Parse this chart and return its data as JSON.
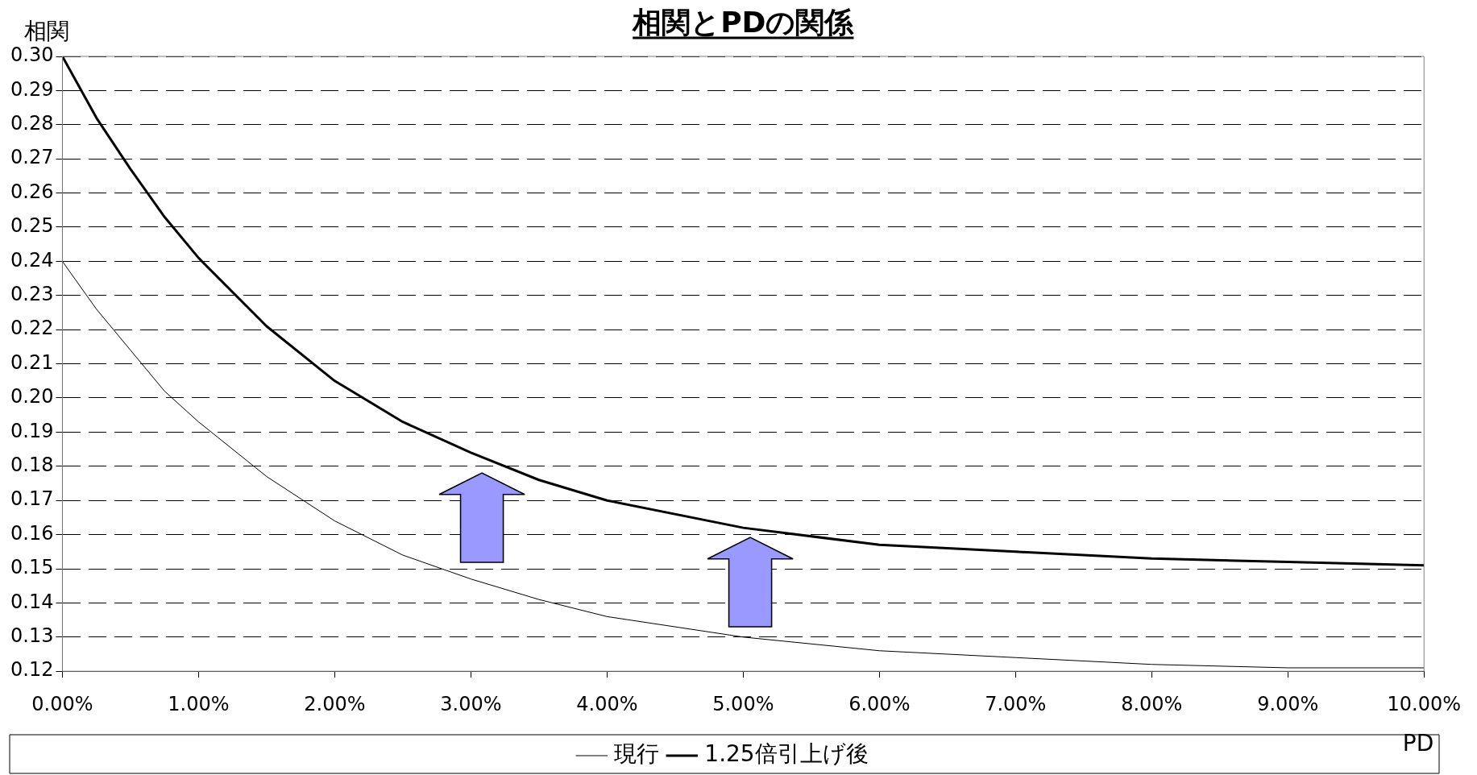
{
  "chart_data": {
    "type": "line",
    "title": "相関とPDの関係",
    "xlabel": "PD",
    "ylabel": "相関",
    "x": [
      0,
      0.25,
      0.5,
      0.75,
      1,
      1.5,
      2,
      2.5,
      3,
      3.5,
      4,
      5,
      6,
      7,
      8,
      9,
      10
    ],
    "series": [
      {
        "name": "現行",
        "color": "#000000",
        "values": [
          0.24,
          0.226,
          0.214,
          0.202,
          0.193,
          0.177,
          0.164,
          0.154,
          0.147,
          0.141,
          0.136,
          0.13,
          0.126,
          0.124,
          0.122,
          0.121,
          0.121
        ]
      },
      {
        "name": "1.25倍引上げ後",
        "color": "#000000",
        "values": [
          0.3,
          0.282,
          0.267,
          0.253,
          0.241,
          0.221,
          0.205,
          0.193,
          0.184,
          0.176,
          0.17,
          0.162,
          0.157,
          0.155,
          0.153,
          0.152,
          0.151
        ]
      }
    ],
    "xlim": [
      0,
      10
    ],
    "xticks": [
      {
        "value": 0,
        "label": "0.00%"
      },
      {
        "value": 1,
        "label": "1.00%"
      },
      {
        "value": 2,
        "label": "2.00%"
      },
      {
        "value": 3,
        "label": "3.00%"
      },
      {
        "value": 4,
        "label": "4.00%"
      },
      {
        "value": 5,
        "label": "5.00%"
      },
      {
        "value": 6,
        "label": "6.00%"
      },
      {
        "value": 7,
        "label": "7.00%"
      },
      {
        "value": 8,
        "label": "8.00%"
      },
      {
        "value": 9,
        "label": "9.00%"
      },
      {
        "value": 10,
        "label": "10.00%"
      }
    ],
    "ylim": [
      0.12,
      0.3
    ],
    "yticks": [
      {
        "value": 0.12,
        "label": "0.12"
      },
      {
        "value": 0.13,
        "label": "0.13"
      },
      {
        "value": 0.14,
        "label": "0.14"
      },
      {
        "value": 0.15,
        "label": "0.15"
      },
      {
        "value": 0.16,
        "label": "0.16"
      },
      {
        "value": 0.17,
        "label": "0.17"
      },
      {
        "value": 0.18,
        "label": "0.18"
      },
      {
        "value": 0.19,
        "label": "0.19"
      },
      {
        "value": 0.2,
        "label": "0.20"
      },
      {
        "value": 0.21,
        "label": "0.21"
      },
      {
        "value": 0.22,
        "label": "0.22"
      },
      {
        "value": 0.23,
        "label": "0.23"
      },
      {
        "value": 0.24,
        "label": "0.24"
      },
      {
        "value": 0.25,
        "label": "0.25"
      },
      {
        "value": 0.26,
        "label": "0.26"
      },
      {
        "value": 0.27,
        "label": "0.27"
      },
      {
        "value": 0.28,
        "label": "0.28"
      },
      {
        "value": 0.29,
        "label": "0.29"
      },
      {
        "value": 0.3,
        "label": "0.30"
      }
    ],
    "grid": "y",
    "legend": "bottom",
    "marker": "none",
    "line_style": "solid"
  }
}
